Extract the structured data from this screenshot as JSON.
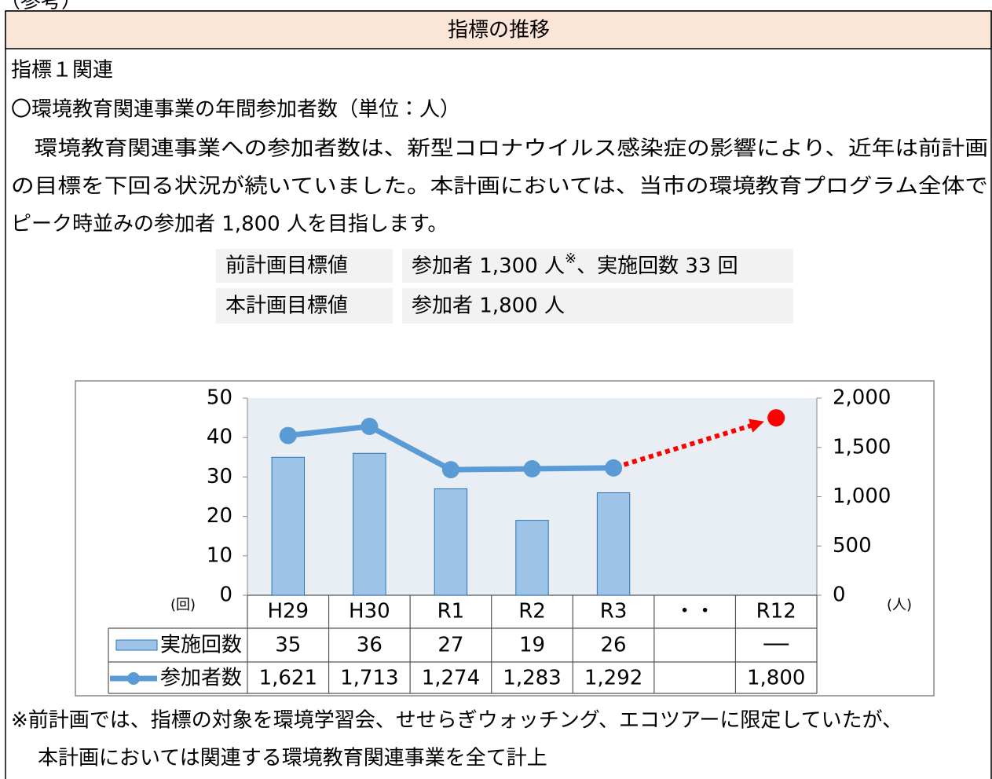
{
  "page_label": "（参考）",
  "header_title": "指標の推移",
  "heading": "指標１関連",
  "subheading": "〇環境教育関連事業の年間参加者数（単位：人）",
  "paragraph_lines": [
    "　環境教育関連事業への参加者数は、新型コロナウイルス感染症の影響により、近年は前計画",
    "の目標を下回る状況が続いていました。本計画においては、当市の環境教育プログラム全体で",
    "ピーク時並みの参加者 1,800 人を目指します。"
  ],
  "target_table": {
    "rows": [
      {
        "label": "前計画目標値",
        "text": "参加者 1,300 人",
        "note": "※",
        "text_after": "、実施回数 33 回"
      },
      {
        "label": "本計画目標値",
        "text": "参加者 1,800 人"
      }
    ]
  },
  "chart_data": {
    "type": "bar",
    "categories": [
      "H29",
      "H30",
      "R1",
      "R2",
      "R3",
      "・・",
      "R12"
    ],
    "series": [
      {
        "name": "実施回数",
        "type": "bar",
        "color": "#9dc3e6",
        "values": [
          35,
          36,
          27,
          19,
          26,
          null,
          null
        ],
        "value_labels": [
          "35",
          "36",
          "27",
          "19",
          "26",
          null,
          "──"
        ]
      },
      {
        "name": "参加者数",
        "type": "line",
        "axis": "y2",
        "color": "#5b9bd5",
        "values": [
          1621,
          1713,
          1274,
          1283,
          1292,
          null,
          1800
        ],
        "value_labels": [
          "1,621",
          "1,713",
          "1,274",
          "1,283",
          "1,292",
          null,
          "1,800"
        ]
      }
    ],
    "projection_color": "#ff0000",
    "ylim": [
      0,
      50
    ],
    "yticks": [
      0,
      10,
      20,
      30,
      40,
      50
    ],
    "y2lim": [
      0,
      2000
    ],
    "y2ticks": [
      0,
      500,
      {
        "value": 1000,
        "label": "1,000"
      },
      {
        "value": 1500,
        "label": "1,500"
      },
      {
        "value": 2000,
        "label": "2,000"
      }
    ],
    "y_unit": "(回)",
    "y2_unit": "(人)",
    "plot_background": "#e8eef4"
  },
  "footnote_lines": [
    "※前計画では、指標の対象を環境学習会、せせらぎウォッチング、エコツアーに限定していたが、",
    "本計画においては関連する環境教育関連事業を全て計上"
  ]
}
